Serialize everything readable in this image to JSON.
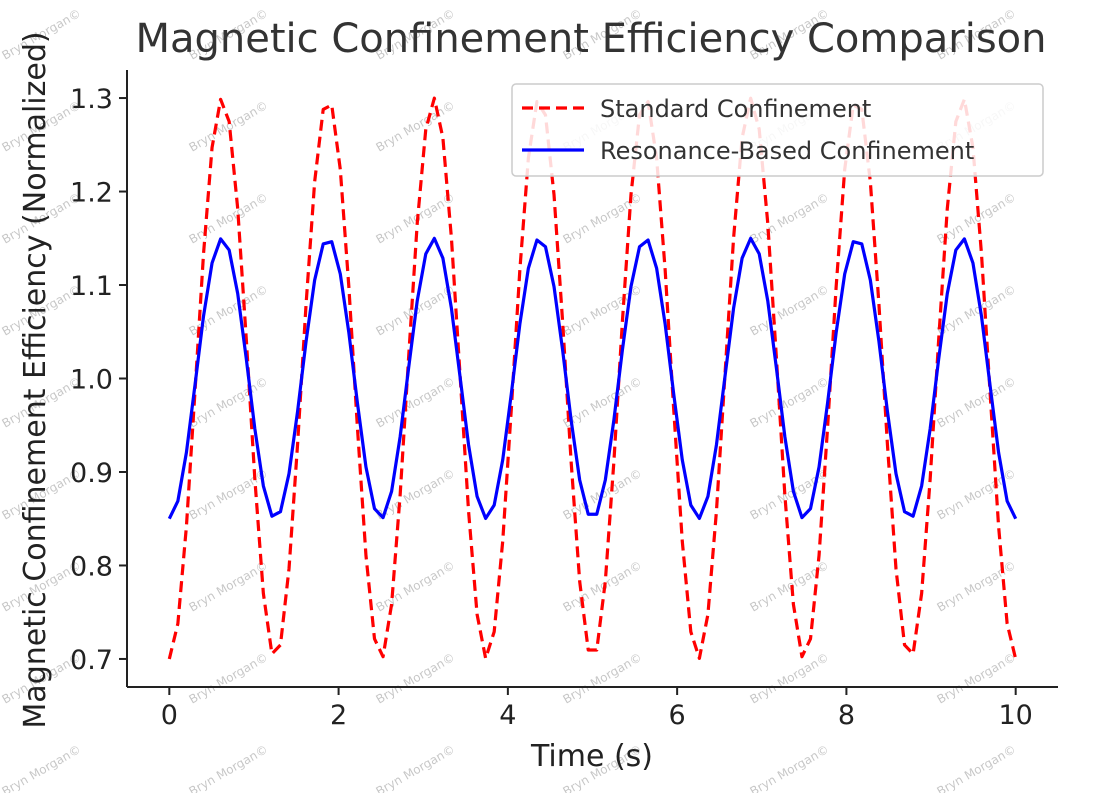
{
  "chart_data": {
    "type": "line",
    "title": "Magnetic Confinement Efficiency Comparison",
    "xlabel": "Time (s)",
    "ylabel": "Magnetic Confinement Efficiency (Normalized)",
    "xlim": [
      -0.5,
      10.5
    ],
    "ylim": [
      0.67,
      1.33
    ],
    "xticks": [
      0,
      2,
      4,
      6,
      8,
      10
    ],
    "xtick_labels": [
      "0",
      "2",
      "4",
      "6",
      "8",
      "10"
    ],
    "yticks": [
      0.7,
      0.8,
      0.9,
      1.0,
      1.1,
      1.2,
      1.3
    ],
    "ytick_labels": [
      "0.7",
      "0.8",
      "0.9",
      "1.0",
      "1.1",
      "1.2",
      "1.3"
    ],
    "grid": false,
    "legend_position": "top-right",
    "series": [
      {
        "name": "Standard Confinement",
        "color": "#ff0000",
        "style": "dashed",
        "mean": 1.0,
        "amplitude": 0.3,
        "period": 1.25,
        "phase_offset": -0.3125,
        "x_start": 0,
        "x_end": 10,
        "samples": 100
      },
      {
        "name": "Resonance-Based Confinement",
        "color": "#0000ff",
        "style": "solid",
        "mean": 1.0,
        "amplitude": 0.15,
        "period": 1.25,
        "phase_offset": -0.3125,
        "x_start": 0,
        "x_end": 10,
        "samples": 100
      }
    ]
  },
  "watermark": "Bryn Morgan©"
}
